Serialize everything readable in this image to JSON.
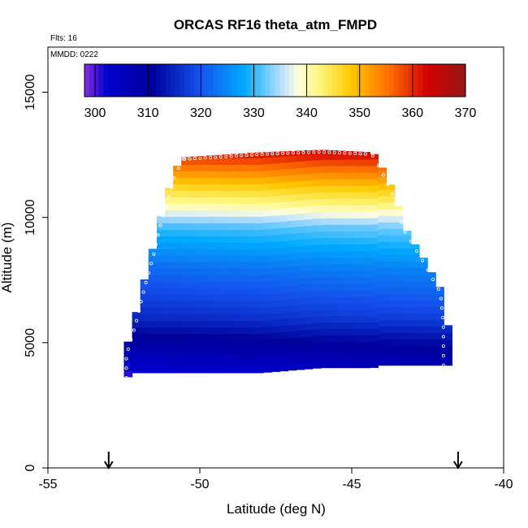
{
  "chart_data": {
    "type": "heatmap",
    "title": "ORCAS RF16 theta_atm_FMPD",
    "annotations": [
      "Flts: 16",
      "MMDD: 0222"
    ],
    "xlabel": "Latitude (deg N)",
    "ylabel": "Altitude (m)",
    "xlim": [
      -55,
      -40
    ],
    "ylim": [
      0,
      16800
    ],
    "x_ticks": [
      "-55",
      "-50",
      "-45",
      "-40"
    ],
    "y_ticks": [
      "0",
      "5000",
      "10000",
      "15000"
    ],
    "colorbar": {
      "min": 298,
      "max": 370,
      "ticks": [
        "300",
        "310",
        "320",
        "330",
        "340",
        "350",
        "360",
        "370"
      ]
    },
    "arrows_at_latitude": [
      -53.0,
      -41.5
    ],
    "domain_profile": [
      {
        "lat": -52.5,
        "y_min": 3500,
        "y_max": 4500
      },
      {
        "lat": -52.2,
        "y_min": 3800,
        "y_max": 5700
      },
      {
        "lat": -51.9,
        "y_min": 3800,
        "y_max": 7200
      },
      {
        "lat": -51.6,
        "y_min": 3800,
        "y_max": 8500
      },
      {
        "lat": -51.4,
        "y_min": 3800,
        "y_max": 9600
      },
      {
        "lat": -51.1,
        "y_min": 3800,
        "y_max": 10800
      },
      {
        "lat": -50.9,
        "y_min": 3800,
        "y_max": 11700
      },
      {
        "lat": -50.6,
        "y_min": 3800,
        "y_max": 12400
      },
      {
        "lat": -48.0,
        "y_min": 3800,
        "y_max": 12600
      },
      {
        "lat": -46.0,
        "y_min": 4000,
        "y_max": 12700
      },
      {
        "lat": -44.3,
        "y_min": 4000,
        "y_max": 12600
      },
      {
        "lat": -44.0,
        "y_min": 4100,
        "y_max": 12000
      },
      {
        "lat": -43.6,
        "y_min": 4100,
        "y_max": 11000
      },
      {
        "lat": -43.2,
        "y_min": 4100,
        "y_max": 9500
      },
      {
        "lat": -42.6,
        "y_min": 4100,
        "y_max": 8300
      },
      {
        "lat": -42.0,
        "y_min": 4100,
        "y_max": 7000
      },
      {
        "lat": -41.9,
        "y_min": 4100,
        "y_max": 5700
      }
    ],
    "theta_profile": [
      {
        "alt": 3600,
        "theta": 300
      },
      {
        "alt": 4500,
        "theta": 306
      },
      {
        "alt": 6000,
        "theta": 315
      },
      {
        "alt": 8000,
        "theta": 322
      },
      {
        "alt": 9600,
        "theta": 330
      },
      {
        "alt": 10500,
        "theta": 340
      },
      {
        "alt": 11200,
        "theta": 346
      },
      {
        "alt": 12000,
        "theta": 354
      },
      {
        "alt": 12700,
        "theta": 362
      }
    ]
  }
}
